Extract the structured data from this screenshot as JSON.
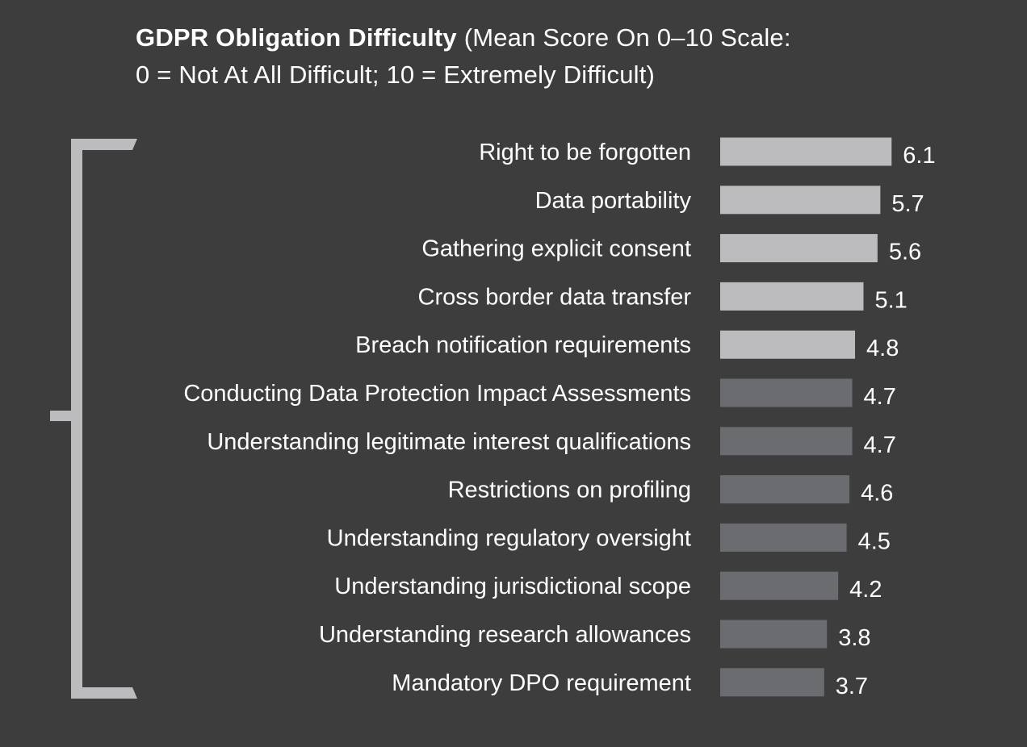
{
  "title": {
    "bold": "GDPR Obligation Difficulty",
    "line1_rest": " (Mean Score On 0–10 Scale:",
    "line2": "0 = Not At All Difficult; 10 = Extremely Difficult)"
  },
  "colors": {
    "background": "#3d3d3d",
    "bar_highlight": "#bcbcbe",
    "bar_normal": "#6b6c6f",
    "bracket": "#bcbcbe",
    "text": "#ffffff"
  },
  "chart_data": {
    "type": "bar",
    "orientation": "horizontal",
    "title": "GDPR Obligation Difficulty (Mean Score On 0–10 Scale: 0 = Not At All Difficult; 10 = Extremely Difficult)",
    "categories": [
      "Right to be forgotten",
      "Data portability",
      "Gathering explicit consent",
      "Cross border data transfer",
      "Breach notification requirements",
      "Conducting Data Protection Impact Assessments",
      "Understanding legitimate interest qualifications",
      "Restrictions on profiling",
      "Understanding regulatory oversight",
      "Understanding jurisdictional scope",
      "Understanding research allowances",
      "Mandatory DPO requirement"
    ],
    "values": [
      6.1,
      5.7,
      5.6,
      5.1,
      4.8,
      4.7,
      4.7,
      4.6,
      4.5,
      4.2,
      3.8,
      3.7
    ],
    "value_labels": [
      "6.1",
      "5.7",
      "5.6",
      "5.1",
      "4.8",
      "4.7",
      "4.7",
      "4.6",
      "4.5",
      "4.2",
      "3.8",
      "3.7"
    ],
    "highlighted": [
      true,
      true,
      true,
      true,
      true,
      false,
      false,
      false,
      false,
      false,
      false,
      false
    ],
    "xlim": [
      0,
      10
    ],
    "grid": false,
    "legend": "none"
  }
}
